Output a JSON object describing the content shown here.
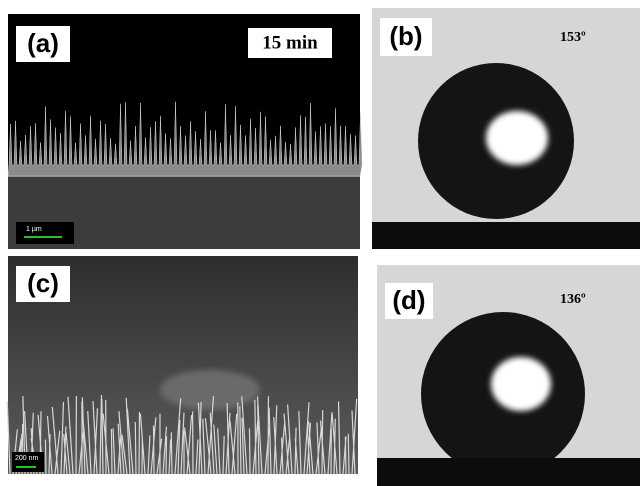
{
  "panels": {
    "a": {
      "label": "(a)",
      "annotation": "15 min",
      "scale_bar": "1 µm"
    },
    "b": {
      "label": "(b)",
      "contact_angle": "153º"
    },
    "c": {
      "label": "(c)",
      "scale_bar": "200 nm"
    },
    "d": {
      "label": "(d)",
      "contact_angle": "136º"
    }
  }
}
